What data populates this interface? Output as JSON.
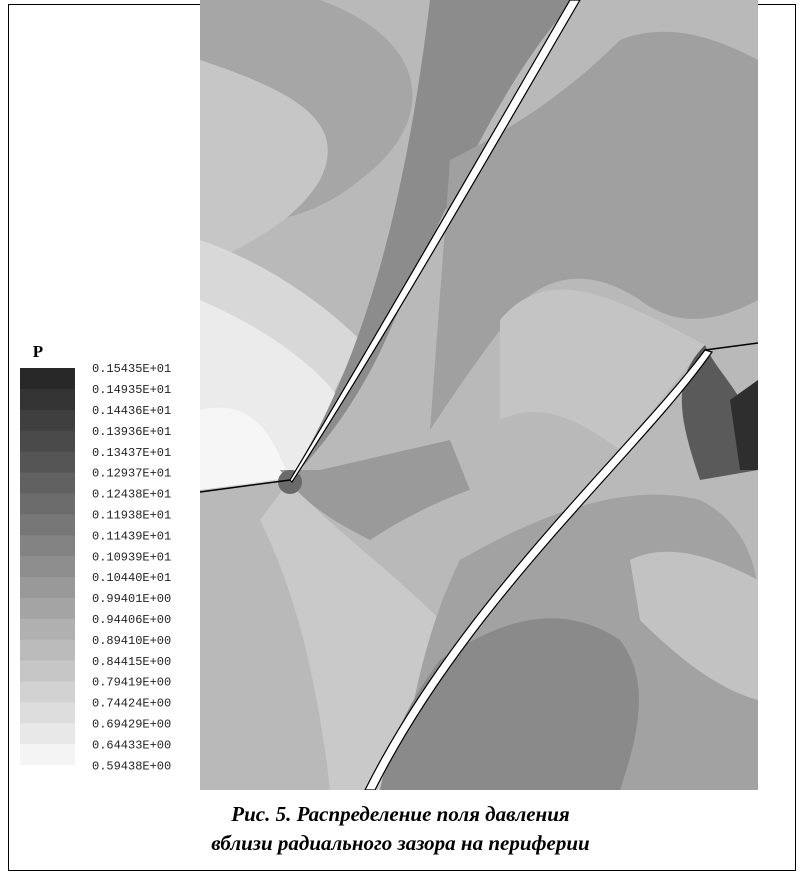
{
  "legend": {
    "title": "P",
    "labels": [
      "0.15435E+01",
      "0.14935E+01",
      "0.14436E+01",
      "0.13936E+01",
      "0.13437E+01",
      "0.12937E+01",
      "0.12438E+01",
      "0.11938E+01",
      "0.11439E+01",
      "0.10939E+01",
      "0.10440E+01",
      "0.99401E+00",
      "0.94406E+00",
      "0.89410E+00",
      "0.84415E+00",
      "0.79419E+00",
      "0.74424E+00",
      "0.69429E+00",
      "0.64433E+00",
      "0.59438E+00"
    ]
  },
  "caption": {
    "line1": "Рис. 5. Распределение поля давления",
    "line2": "вблизи радиального зазора на периферии"
  }
}
